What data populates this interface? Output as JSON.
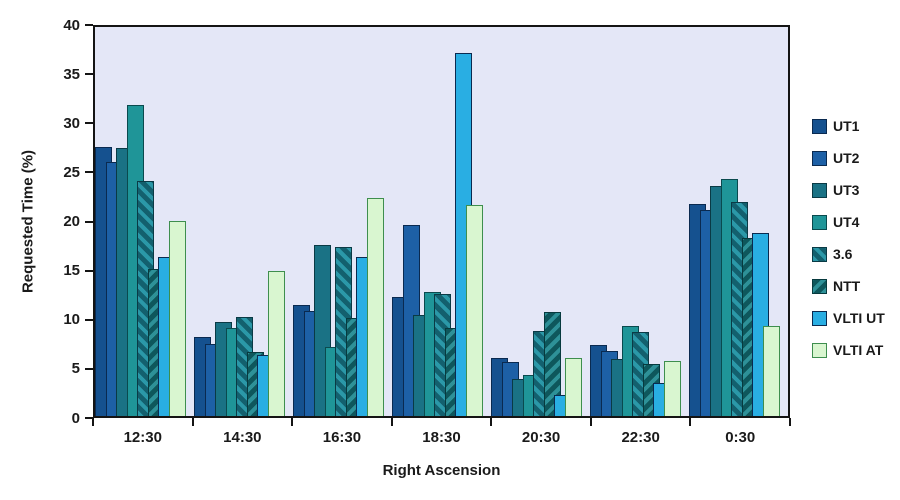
{
  "chart_data": {
    "type": "bar",
    "title": "",
    "xlabel": "Right Ascension",
    "ylabel": "Requested Time (%)",
    "ylim": [
      0,
      40
    ],
    "ytick_step": 5,
    "grid": false,
    "legend_position": "right",
    "plot_background": "#E4E7F7",
    "axis_color": "#141414",
    "categories": [
      "12:30",
      "14:30",
      "16:30",
      "18:30",
      "20:30",
      "22:30",
      "0:30"
    ],
    "series": [
      {
        "name": "UT1",
        "pattern": "solid",
        "color": "#15518F",
        "border": "#0A2A50",
        "values": [
          27.7,
          8.1,
          11.4,
          12.2,
          6.0,
          7.3,
          21.8
        ]
      },
      {
        "name": "UT2",
        "pattern": "solid",
        "color": "#1D60A6",
        "border": "#0A2A50",
        "values": [
          26.1,
          7.4,
          10.8,
          19.6,
          5.6,
          6.7,
          21.2
        ]
      },
      {
        "name": "UT3",
        "pattern": "solid",
        "color": "#1A7285",
        "border": "#0A3A45",
        "values": [
          27.6,
          9.7,
          17.6,
          10.4,
          3.8,
          5.9,
          23.7
        ]
      },
      {
        "name": "UT4",
        "pattern": "solid",
        "color": "#1F9598",
        "border": "#0A4A4E",
        "values": [
          32.0,
          9.0,
          7.1,
          12.8,
          4.2,
          9.3,
          24.4
        ]
      },
      {
        "name": "3.6",
        "pattern": "diagonal-stripes",
        "color": "#1B7B8B",
        "border": "#0A3A45",
        "stripe_colors": [
          "#2B98A8",
          "#13606E"
        ],
        "stripe_angle": 45,
        "values": [
          24.2,
          10.2,
          17.4,
          12.5,
          8.7,
          8.6,
          22.0
        ]
      },
      {
        "name": "NTT",
        "pattern": "chevron",
        "color": "#0F5A5E",
        "border": "#073A3E",
        "stripe_colors": [
          "#2E9198",
          "#0E575C"
        ],
        "stripe_angle": -45,
        "values": [
          15.1,
          6.6,
          10.1,
          9.1,
          10.7,
          5.4,
          18.3
        ]
      },
      {
        "name": "VLTI UT",
        "pattern": "solid",
        "color": "#29AEE3",
        "border": "#0A2A50",
        "values": [
          16.4,
          6.3,
          16.3,
          37.3,
          2.2,
          3.4,
          18.8
        ]
      },
      {
        "name": "VLTI AT",
        "pattern": "solid",
        "color": "#D9F6D0",
        "border": "#3E8E4E",
        "values": [
          20.1,
          14.9,
          22.4,
          21.7,
          6.0,
          5.7,
          9.3
        ]
      }
    ]
  }
}
